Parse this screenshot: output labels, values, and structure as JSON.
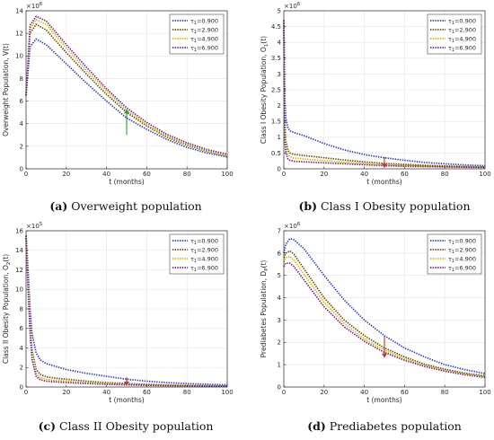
{
  "series_colors": [
    "#2b3fbf",
    "#6b4a00",
    "#d4b800",
    "#6a1f8c"
  ],
  "chart_data": [
    {
      "type": "line",
      "caption_tag": "(a)",
      "caption_text": "Overweight population",
      "xlabel": "t (months)",
      "ylabel": "Overweight Population, V(t)",
      "exponent_base": "×10",
      "exponent_power": "6",
      "xlim": [
        0,
        100
      ],
      "ylim": [
        0,
        14
      ],
      "xticks": [
        0,
        20,
        40,
        60,
        80,
        100
      ],
      "yticks": [
        0,
        2,
        4,
        6,
        8,
        10,
        12,
        14
      ],
      "legend_position": "top-right",
      "arrow": {
        "x": 50,
        "y_from": 3.0,
        "y_to": 5.3,
        "color": "#2e9b2e"
      },
      "series": [
        {
          "name_sym": "τ",
          "name_sub": "1",
          "name_val": "=0.900",
          "x": [
            0,
            2,
            5,
            10,
            20,
            30,
            40,
            50,
            60,
            70,
            80,
            90,
            100
          ],
          "values": [
            6.5,
            10.8,
            11.5,
            11.0,
            9.3,
            7.6,
            6.0,
            4.5,
            3.5,
            2.6,
            1.9,
            1.4,
            1.05
          ]
        },
        {
          "name_sym": "τ",
          "name_sub": "1",
          "name_val": "=2.900",
          "x": [
            0,
            2,
            5,
            10,
            20,
            30,
            40,
            50,
            60,
            70,
            80,
            90,
            100
          ],
          "values": [
            6.5,
            12.0,
            12.8,
            12.3,
            10.3,
            8.4,
            6.6,
            5.0,
            3.8,
            2.8,
            2.1,
            1.55,
            1.15
          ]
        },
        {
          "name_sym": "τ",
          "name_sub": "1",
          "name_val": "=4.900",
          "x": [
            0,
            2,
            5,
            10,
            20,
            30,
            40,
            50,
            60,
            70,
            80,
            90,
            100
          ],
          "values": [
            6.5,
            12.4,
            13.2,
            12.8,
            10.7,
            8.7,
            6.9,
            5.2,
            3.9,
            2.9,
            2.2,
            1.6,
            1.2
          ]
        },
        {
          "name_sym": "τ",
          "name_sub": "1",
          "name_val": "=6.900",
          "x": [
            0,
            2,
            5,
            10,
            20,
            30,
            40,
            50,
            60,
            70,
            80,
            90,
            100
          ],
          "values": [
            6.5,
            12.7,
            13.5,
            13.1,
            11.0,
            9.0,
            7.1,
            5.4,
            4.1,
            3.05,
            2.3,
            1.7,
            1.3
          ]
        }
      ]
    },
    {
      "type": "line",
      "caption_tag": "(b)",
      "caption_text": "Class I Obesity population",
      "xlabel": "t (months)",
      "ylabel": "Class I Obesity Population, O",
      "ylabel_sub": "1",
      "ylabel_tail": "(t)",
      "exponent_base": "×10",
      "exponent_power": "6",
      "xlim": [
        0,
        100
      ],
      "ylim": [
        0,
        5
      ],
      "xticks": [
        0,
        20,
        40,
        60,
        80,
        100
      ],
      "yticks": [
        0,
        0.5,
        1,
        1.5,
        2,
        2.5,
        3,
        3.5,
        4,
        4.5,
        5
      ],
      "legend_position": "top-right",
      "arrow": {
        "x": 50,
        "y_from": 0.38,
        "y_to": 0.02,
        "color": "#c0392b"
      },
      "series": [
        {
          "name_sym": "τ",
          "name_sub": "1",
          "name_val": "=0.900",
          "x": [
            0,
            0.5,
            1,
            2,
            3,
            5,
            10,
            20,
            30,
            40,
            50,
            60,
            70,
            80,
            90,
            100
          ],
          "values": [
            4.7,
            2.2,
            1.6,
            1.3,
            1.2,
            1.15,
            1.05,
            0.8,
            0.6,
            0.45,
            0.35,
            0.27,
            0.2,
            0.16,
            0.12,
            0.1
          ]
        },
        {
          "name_sym": "τ",
          "name_sub": "1",
          "name_val": "=2.900",
          "x": [
            0,
            0.5,
            1,
            2,
            3,
            5,
            10,
            20,
            30,
            40,
            50,
            60,
            70,
            80,
            90,
            100
          ],
          "values": [
            4.7,
            1.5,
            0.9,
            0.6,
            0.5,
            0.46,
            0.42,
            0.35,
            0.28,
            0.22,
            0.17,
            0.14,
            0.11,
            0.09,
            0.07,
            0.06
          ]
        },
        {
          "name_sym": "τ",
          "name_sub": "1",
          "name_val": "=4.900",
          "x": [
            0,
            0.5,
            1,
            2,
            3,
            5,
            10,
            20,
            30,
            40,
            50,
            60,
            70,
            80,
            90,
            100
          ],
          "values": [
            4.7,
            1.2,
            0.7,
            0.45,
            0.38,
            0.34,
            0.31,
            0.26,
            0.21,
            0.17,
            0.13,
            0.11,
            0.09,
            0.07,
            0.06,
            0.05
          ]
        },
        {
          "name_sym": "τ",
          "name_sub": "1",
          "name_val": "=6.900",
          "x": [
            0,
            0.5,
            1,
            2,
            3,
            5,
            10,
            20,
            30,
            40,
            50,
            60,
            70,
            80,
            90,
            100
          ],
          "values": [
            4.7,
            0.9,
            0.5,
            0.32,
            0.27,
            0.24,
            0.22,
            0.19,
            0.16,
            0.13,
            0.1,
            0.08,
            0.07,
            0.06,
            0.05,
            0.04
          ]
        }
      ]
    },
    {
      "type": "line",
      "caption_tag": "(c)",
      "caption_text": "Class II Obesity population",
      "xlabel": "t (months)",
      "ylabel": "Class II Obesity Population, O",
      "ylabel_sub": "2",
      "ylabel_tail": "(t)",
      "exponent_base": "×10",
      "exponent_power": "5",
      "xlim": [
        0,
        100
      ],
      "ylim": [
        0,
        16
      ],
      "xticks": [
        0,
        20,
        40,
        60,
        80,
        100
      ],
      "yticks": [
        0,
        2,
        4,
        6,
        8,
        10,
        12,
        14,
        16
      ],
      "legend_position": "top-right",
      "arrow": {
        "x": 50,
        "y_from": 1.0,
        "y_to": 0.1,
        "color": "#c0392b"
      },
      "series": [
        {
          "name_sym": "τ",
          "name_sub": "1",
          "name_val": "=0.900",
          "x": [
            0,
            1,
            2,
            3,
            5,
            7,
            10,
            15,
            20,
            30,
            40,
            50,
            60,
            70,
            80,
            90,
            100
          ],
          "values": [
            15.5,
            12.0,
            8.0,
            5.5,
            3.5,
            2.8,
            2.4,
            2.1,
            1.8,
            1.4,
            1.1,
            0.8,
            0.6,
            0.45,
            0.35,
            0.28,
            0.22
          ]
        },
        {
          "name_sym": "τ",
          "name_sub": "1",
          "name_val": "=2.900",
          "x": [
            0,
            1,
            2,
            3,
            5,
            7,
            10,
            15,
            20,
            30,
            40,
            50,
            60,
            70,
            80,
            90,
            100
          ],
          "values": [
            15.5,
            11.0,
            6.5,
            3.8,
            1.8,
            1.3,
            1.05,
            0.9,
            0.8,
            0.6,
            0.45,
            0.35,
            0.27,
            0.2,
            0.16,
            0.13,
            0.1
          ]
        },
        {
          "name_sym": "τ",
          "name_sub": "1",
          "name_val": "=4.900",
          "x": [
            0,
            1,
            2,
            3,
            5,
            7,
            10,
            15,
            20,
            30,
            40,
            50,
            60,
            70,
            80,
            90,
            100
          ],
          "values": [
            15.5,
            10.5,
            6.0,
            3.3,
            1.4,
            0.95,
            0.8,
            0.68,
            0.6,
            0.46,
            0.35,
            0.27,
            0.21,
            0.16,
            0.13,
            0.1,
            0.08
          ]
        },
        {
          "name_sym": "τ",
          "name_sub": "1",
          "name_val": "=6.900",
          "x": [
            0,
            1,
            2,
            3,
            5,
            7,
            10,
            15,
            20,
            30,
            40,
            50,
            60,
            70,
            80,
            90,
            100
          ],
          "values": [
            15.5,
            10.0,
            5.5,
            2.8,
            1.1,
            0.75,
            0.6,
            0.52,
            0.46,
            0.36,
            0.28,
            0.22,
            0.17,
            0.13,
            0.1,
            0.08,
            0.07
          ]
        }
      ]
    },
    {
      "type": "line",
      "caption_tag": "(d)",
      "caption_text": "Prediabetes population",
      "xlabel": "t (months)",
      "ylabel": "Prediabetes Population, D",
      "ylabel_sub": "P",
      "ylabel_tail": "(t)",
      "exponent_base": "×10",
      "exponent_power": "6",
      "xlim": [
        0,
        100
      ],
      "ylim": [
        0,
        7
      ],
      "xticks": [
        0,
        20,
        40,
        60,
        80,
        100
      ],
      "yticks": [
        0,
        1,
        2,
        3,
        4,
        5,
        6,
        7
      ],
      "legend_position": "top-right",
      "arrow": {
        "x": 50,
        "y_from": 2.3,
        "y_to": 1.3,
        "color": "#c0392b"
      },
      "series": [
        {
          "name_sym": "τ",
          "name_sub": "1",
          "name_val": "=0.900",
          "x": [
            0,
            1,
            3,
            5,
            10,
            20,
            30,
            40,
            50,
            60,
            70,
            80,
            90,
            100
          ],
          "values": [
            6.0,
            6.4,
            6.65,
            6.6,
            6.2,
            5.0,
            3.9,
            3.0,
            2.3,
            1.75,
            1.35,
            1.0,
            0.78,
            0.6
          ]
        },
        {
          "name_sym": "τ",
          "name_sub": "1",
          "name_val": "=2.900",
          "x": [
            0,
            1,
            3,
            5,
            10,
            20,
            30,
            40,
            50,
            60,
            70,
            80,
            90,
            100
          ],
          "values": [
            5.8,
            6.0,
            6.1,
            5.95,
            5.3,
            4.0,
            3.0,
            2.3,
            1.75,
            1.35,
            1.02,
            0.8,
            0.62,
            0.5
          ]
        },
        {
          "name_sym": "τ",
          "name_sub": "1",
          "name_val": "=4.900",
          "x": [
            0,
            1,
            3,
            5,
            10,
            20,
            30,
            40,
            50,
            60,
            70,
            80,
            90,
            100
          ],
          "values": [
            5.6,
            5.8,
            5.85,
            5.7,
            5.05,
            3.8,
            2.85,
            2.15,
            1.65,
            1.27,
            0.97,
            0.75,
            0.58,
            0.46
          ]
        },
        {
          "name_sym": "τ",
          "name_sub": "1",
          "name_val": "=6.900",
          "x": [
            0,
            1,
            3,
            5,
            10,
            20,
            30,
            40,
            50,
            60,
            70,
            80,
            90,
            100
          ],
          "values": [
            5.4,
            5.55,
            5.55,
            5.4,
            4.8,
            3.6,
            2.7,
            2.05,
            1.55,
            1.2,
            0.92,
            0.71,
            0.55,
            0.43
          ]
        }
      ]
    }
  ]
}
